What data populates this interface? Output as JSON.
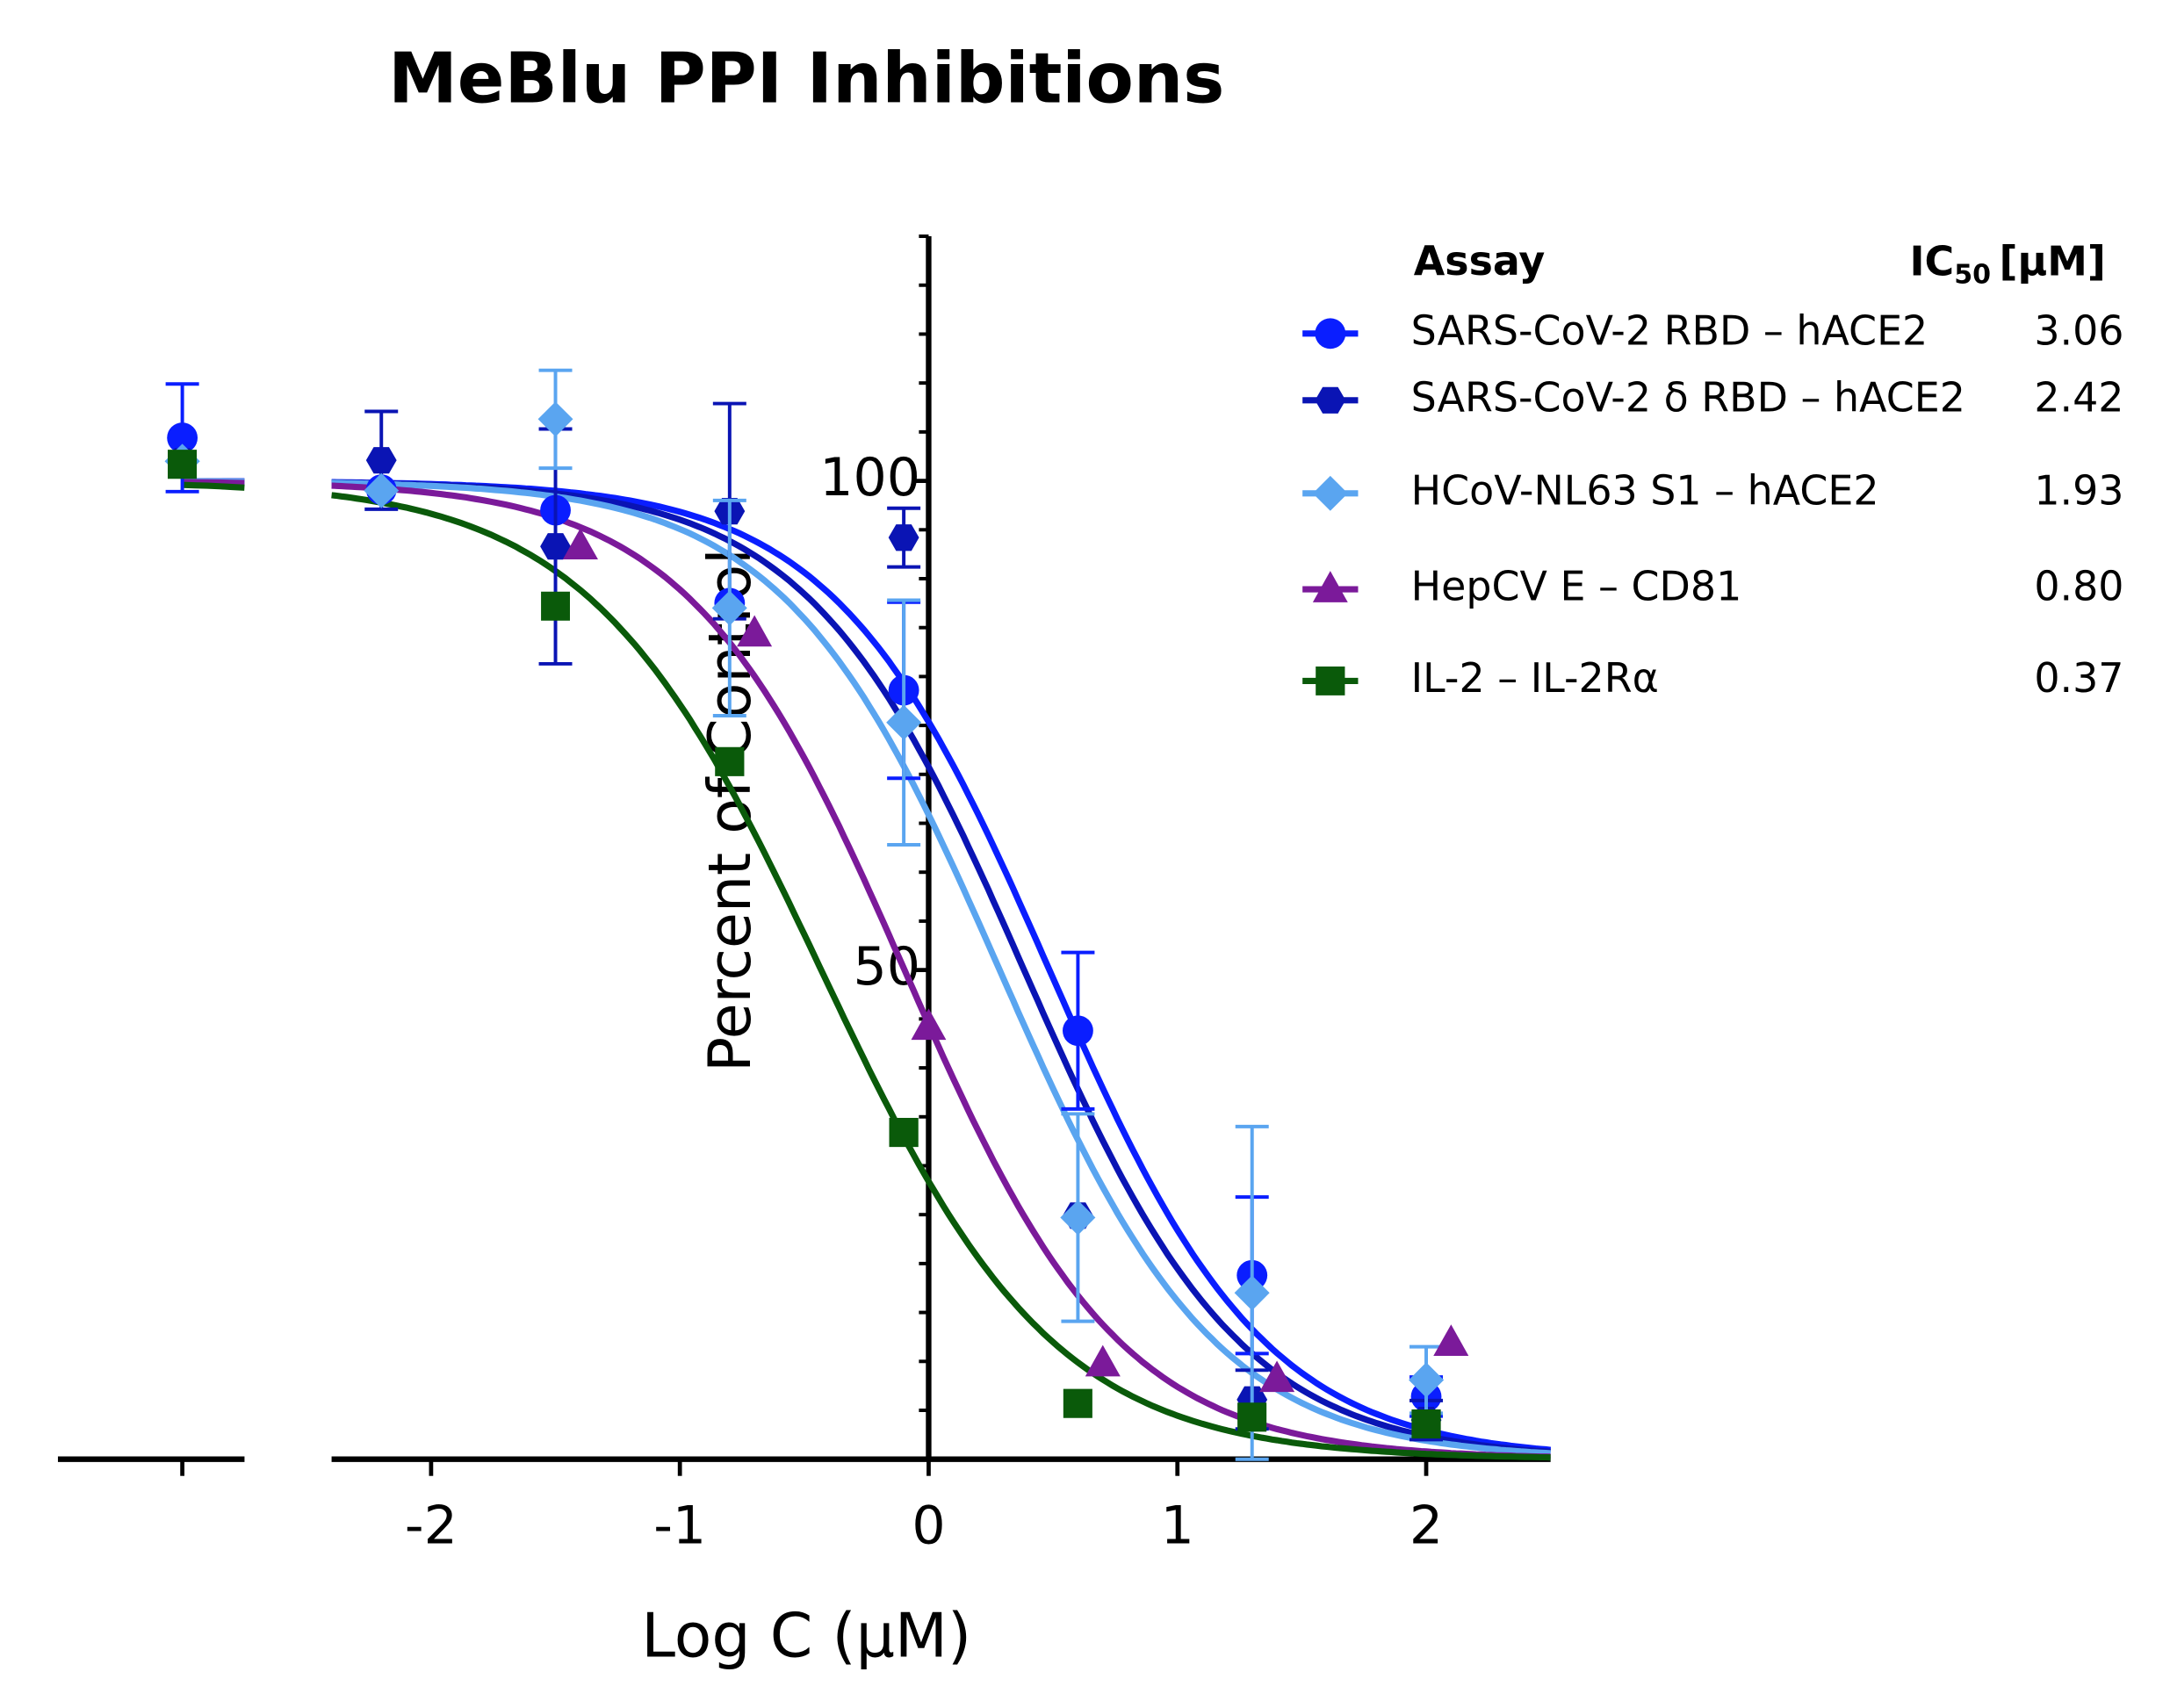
{
  "chart_data": {
    "type": "scatter",
    "title": "MeBlu PPI Inhibitions",
    "xlabel": "Log C (µM)",
    "ylabel": "Percent of Control",
    "xlim": [
      -3.5,
      2.5
    ],
    "xticks": [
      -2,
      -1,
      0,
      1,
      2
    ],
    "unlabeled_xticks": [
      -3
    ],
    "x_axis_break": [
      -2.75,
      -2.4
    ],
    "ylim": [
      0,
      125
    ],
    "yticks": [
      50,
      100
    ],
    "minor_yticks": [
      5,
      10,
      15,
      20,
      25,
      30,
      35,
      40,
      45,
      55,
      60,
      65,
      70,
      75,
      80,
      85,
      90,
      95,
      105,
      110,
      115,
      120,
      125
    ],
    "legend_header": {
      "assay": "Assay",
      "ic50": [
        "IC",
        "50",
        "[µM]"
      ]
    },
    "series": [
      {
        "name": "SARS-CoV-2 RBD – hACE2",
        "color": "#0a1eff",
        "marker": "circle",
        "ic50": 3.06,
        "ic50_label": "3.06",
        "hill_slope": 1,
        "x": [
          -3,
          -2.2,
          -1.5,
          -0.8,
          -0.1,
          0.6,
          1.3,
          2.0
        ],
        "values": [
          104.4,
          99.1,
          97,
          87.5,
          78.6,
          43.8,
          18.8,
          6.4
        ],
        "errors": [
          5.5,
          null,
          null,
          null,
          9,
          8,
          8,
          2
        ]
      },
      {
        "name": "SARS-CoV-2 δ RBD – hACE2",
        "color": "#0a14b4",
        "marker": "hexagon",
        "ic50": 2.42,
        "ic50_label": "2.42",
        "hill_slope": 1,
        "x": [
          -3,
          -2.2,
          -1.5,
          -0.8,
          -0.1,
          0.6,
          1.3,
          2.0
        ],
        "values": [
          102,
          102.1,
          93.3,
          96.9,
          94.2,
          24.9,
          6.1,
          4
        ],
        "errors": [
          null,
          5,
          12,
          11,
          3,
          null,
          3,
          2
        ]
      },
      {
        "name": "HCoV-NL63 S1 – hACE2",
        "color": "#5aa5f0",
        "marker": "diamond",
        "ic50": 1.93,
        "ic50_label": "1.93",
        "hill_slope": 1,
        "x": [
          -3,
          -2.2,
          -1.5,
          -0.8,
          -0.1,
          0.6,
          1.3,
          2.0
        ],
        "values": [
          102,
          99,
          106.3,
          87,
          75.3,
          24.7,
          17,
          8.1
        ],
        "errors": [
          null,
          null,
          5,
          11,
          12.5,
          10.6,
          17,
          3.4
        ]
      },
      {
        "name": "HepCV E – CD81",
        "color": "#7b1a9a",
        "marker": "triangle",
        "ic50": 0.8,
        "ic50_label": "0.80",
        "hill_slope": 1,
        "x": [
          -1.4,
          -0.7,
          0,
          0.7,
          1.4,
          2.1
        ],
        "values": [
          93.3,
          84.4,
          44.2,
          9.8,
          8.2,
          11.9
        ],
        "errors": [
          null,
          null,
          null,
          null,
          null,
          null
        ]
      },
      {
        "name": "IL-2 – IL-2Rα",
        "color": "#0a5a0a",
        "marker": "square",
        "ic50": 0.37,
        "ic50_label": "0.37",
        "hill_slope": 0.93,
        "x": [
          -3,
          -1.5,
          -0.8,
          -0.1,
          0.6,
          1.3,
          2.0
        ],
        "values": [
          101.7,
          87.2,
          71.3,
          33.4,
          5.7,
          4.3,
          3.6
        ],
        "errors": [
          null,
          null,
          null,
          null,
          null,
          null,
          null
        ]
      }
    ]
  }
}
